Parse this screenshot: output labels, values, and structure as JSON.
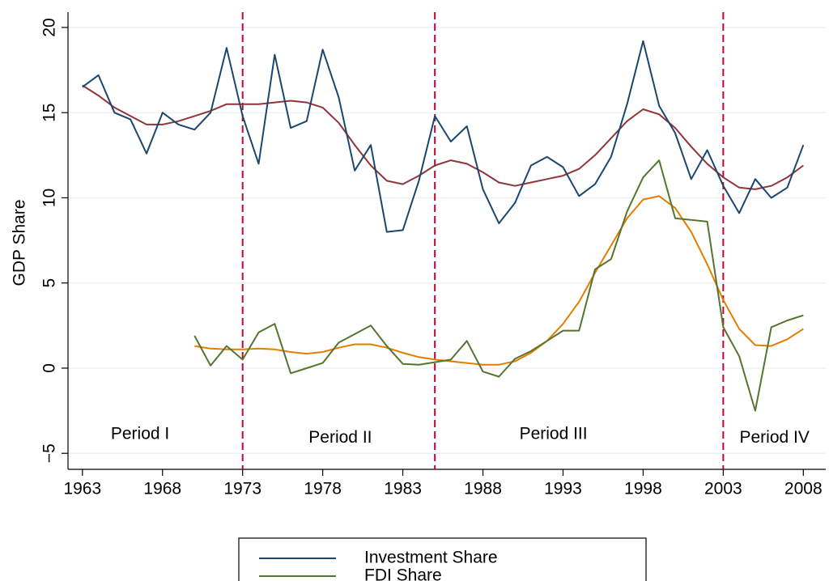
{
  "chart_data": {
    "type": "line",
    "y_label": "GDP Share",
    "x": [
      1963,
      1964,
      1965,
      1966,
      1967,
      1968,
      1969,
      1970,
      1971,
      1972,
      1973,
      1974,
      1975,
      1976,
      1977,
      1978,
      1979,
      1980,
      1981,
      1982,
      1983,
      1984,
      1985,
      1986,
      1987,
      1988,
      1989,
      1990,
      1991,
      1992,
      1993,
      1994,
      1995,
      1996,
      1997,
      1998,
      1999,
      2000,
      2001,
      2002,
      2003,
      2004,
      2005,
      2006,
      2007,
      2008
    ],
    "series": [
      {
        "name": "Investment Share",
        "color": "#1a476f",
        "values": [
          16.5,
          17.2,
          15.0,
          14.6,
          12.6,
          15.0,
          14.3,
          14.0,
          15.0,
          18.8,
          14.8,
          12.0,
          18.4,
          14.1,
          14.5,
          18.7,
          15.9,
          11.6,
          13.1,
          8.0,
          8.1,
          11.0,
          14.8,
          13.3,
          14.2,
          10.5,
          8.5,
          9.7,
          11.9,
          12.4,
          11.8,
          10.1,
          10.8,
          12.4,
          15.5,
          19.2,
          15.4,
          13.8,
          11.1,
          12.8,
          10.7,
          9.1,
          11.1,
          10.0,
          10.6,
          13.1
        ]
      },
      {
        "name": "FDI Share",
        "color": "#55752f",
        "values": [
          null,
          null,
          null,
          null,
          null,
          null,
          null,
          1.9,
          0.15,
          1.3,
          0.5,
          2.1,
          2.6,
          -0.3,
          0.0,
          0.3,
          1.5,
          2.0,
          2.5,
          1.3,
          0.25,
          0.2,
          0.35,
          0.5,
          1.6,
          -0.2,
          -0.5,
          0.55,
          1.0,
          1.6,
          2.2,
          2.2,
          5.8,
          6.4,
          9.2,
          11.2,
          12.2,
          8.8,
          8.7,
          8.6,
          2.4,
          0.7,
          -2.5,
          2.4,
          2.8,
          3.1
        ]
      },
      {
        "color": "#90353b",
        "values": [
          16.6,
          16.0,
          15.3,
          14.8,
          14.3,
          14.3,
          14.5,
          14.8,
          15.1,
          15.5,
          15.5,
          15.5,
          15.6,
          15.7,
          15.6,
          15.3,
          14.4,
          13.1,
          11.9,
          11.0,
          10.8,
          11.3,
          11.9,
          12.2,
          12.0,
          11.5,
          10.9,
          10.7,
          10.9,
          11.1,
          11.3,
          11.7,
          12.5,
          13.5,
          14.5,
          15.2,
          14.9,
          14.1,
          13.0,
          12.0,
          11.2,
          10.6,
          10.5,
          10.7,
          11.2,
          11.9
        ]
      },
      {
        "color": "#e37e00",
        "values": [
          null,
          null,
          null,
          null,
          null,
          null,
          null,
          1.3,
          1.15,
          1.1,
          1.1,
          1.15,
          1.1,
          0.95,
          0.85,
          0.95,
          1.2,
          1.4,
          1.4,
          1.2,
          0.9,
          0.65,
          0.5,
          0.4,
          0.3,
          0.2,
          0.2,
          0.4,
          0.9,
          1.6,
          2.6,
          3.9,
          5.6,
          7.2,
          8.8,
          9.9,
          10.1,
          9.4,
          8.0,
          6.1,
          4.0,
          2.3,
          1.35,
          1.3,
          1.7,
          2.3
        ]
      }
    ],
    "vlines": [
      1973,
      1985,
      2003
    ],
    "vline_color": "#c10534",
    "annotations": [
      "Period I",
      "Period II",
      "Period III",
      "Period IV"
    ],
    "xlim": [
      1962.1,
      2009.4
    ],
    "xticks": [
      1963,
      1968,
      1973,
      1978,
      1983,
      1988,
      1993,
      1998,
      2003,
      2008
    ],
    "ylim": [
      -5.94,
      20.9
    ],
    "yticks": [
      {
        "value": -5,
        "label": "−5"
      },
      0,
      5,
      10,
      15,
      20
    ],
    "grid": true
  }
}
